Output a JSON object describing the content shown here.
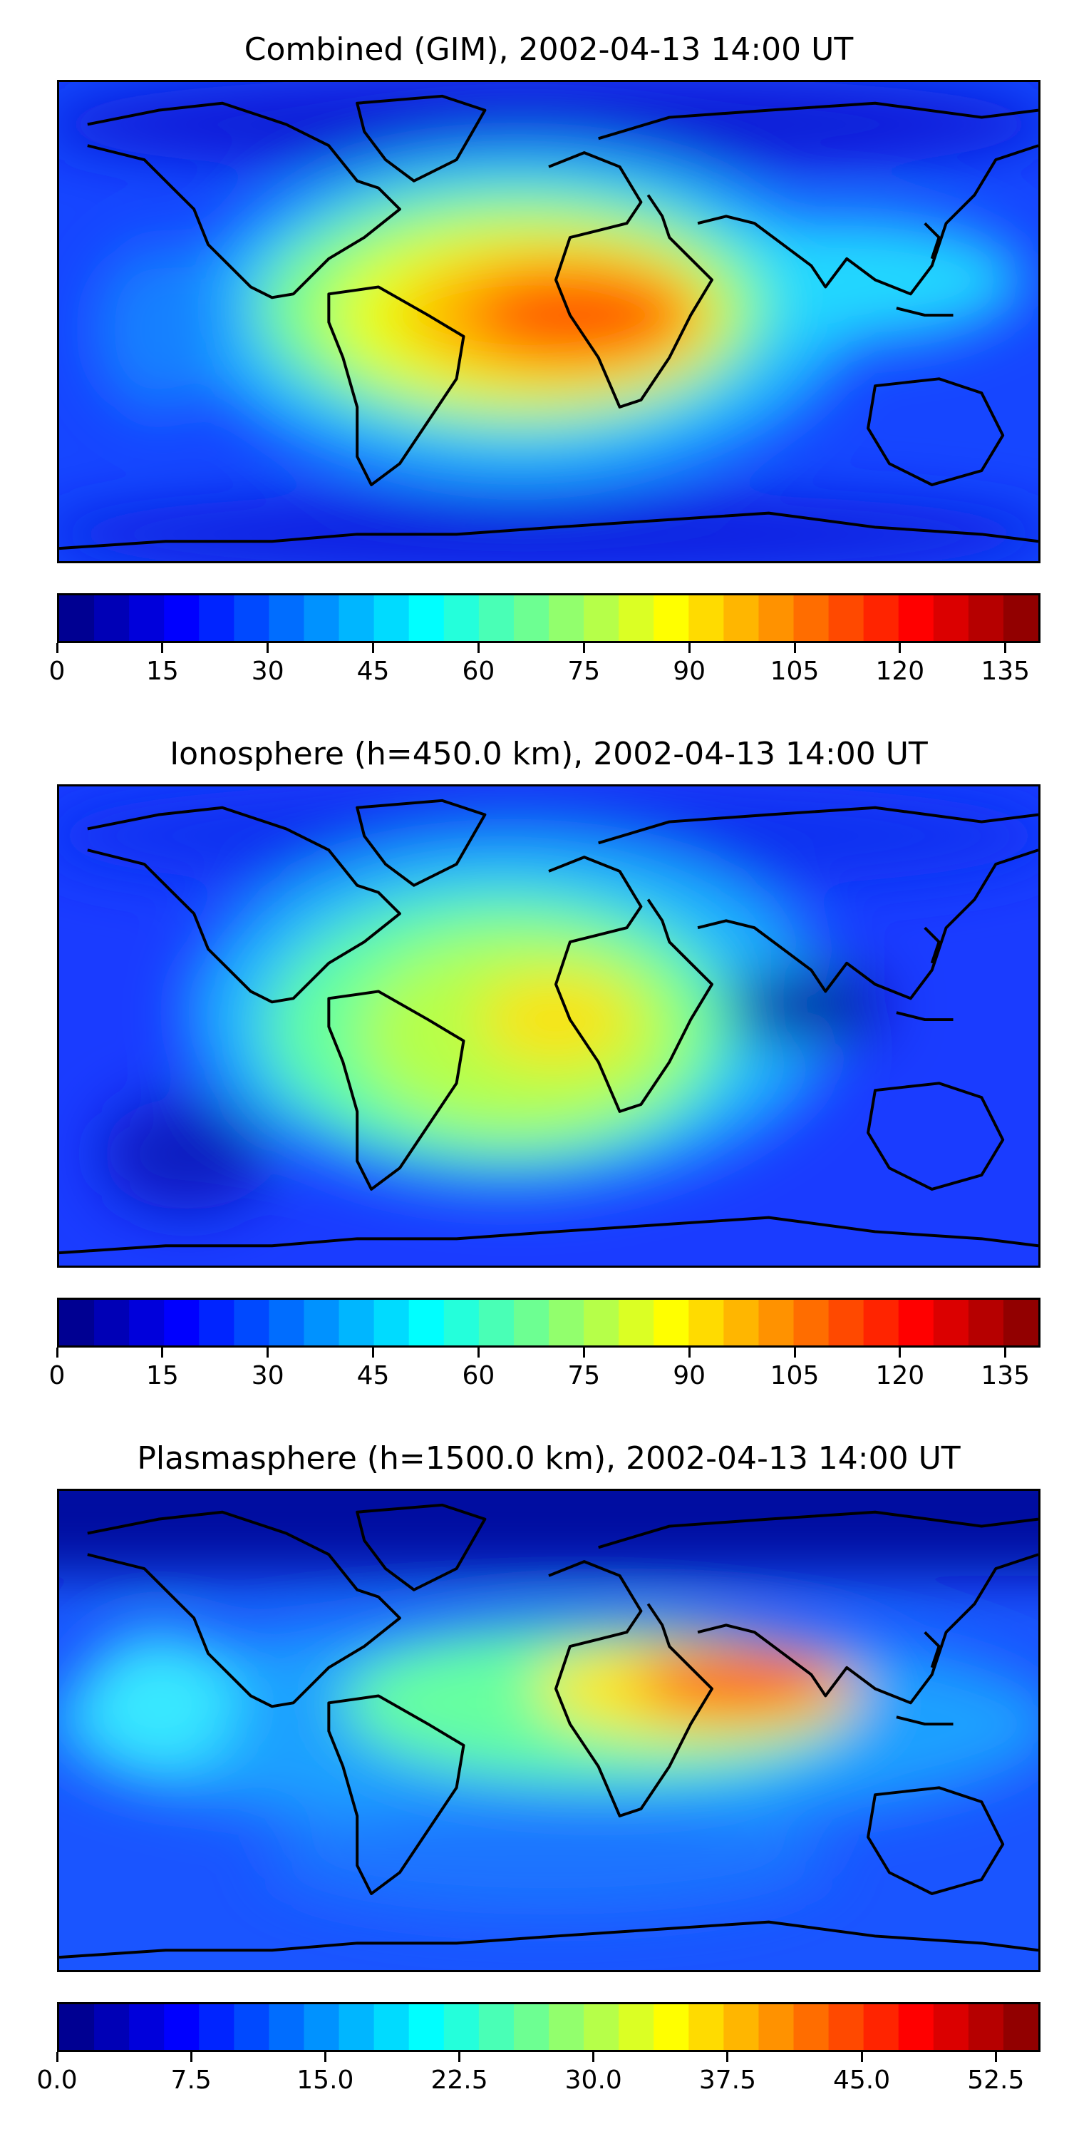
{
  "figure": {
    "panels": [
      {
        "title": "Combined (GIM), 2002-04-13 14:00 UT",
        "colorbar_max": 140,
        "colorbar_ticks": [
          "0",
          "15",
          "30",
          "45",
          "60",
          "75",
          "90",
          "105",
          "120",
          "135"
        ],
        "tick_values": [
          0,
          15,
          30,
          45,
          60,
          75,
          90,
          105,
          120,
          135
        ]
      },
      {
        "title": "Ionosphere  (h=450.0 km), 2002-04-13 14:00 UT",
        "colorbar_max": 140,
        "colorbar_ticks": [
          "0",
          "15",
          "30",
          "45",
          "60",
          "75",
          "90",
          "105",
          "120",
          "135"
        ],
        "tick_values": [
          0,
          15,
          30,
          45,
          60,
          75,
          90,
          105,
          120,
          135
        ]
      },
      {
        "title": "Plasmasphere (h=1500.0 km), 2002-04-13 14:00 UT",
        "colorbar_max": 55,
        "colorbar_ticks": [
          "0.0",
          "7.5",
          "15.0",
          "22.5",
          "30.0",
          "37.5",
          "45.0",
          "52.5"
        ],
        "tick_values": [
          0,
          7.5,
          15,
          22.5,
          30,
          37.5,
          45,
          52.5
        ]
      }
    ],
    "colormap": "jet",
    "colorbar_levels": 28
  },
  "chart_data": [
    {
      "type": "heatmap",
      "title": "Combined (GIM), 2002-04-13 14:00 UT",
      "colorbar_range": [
        0,
        140
      ],
      "colorbar_ticks": [
        0,
        15,
        30,
        45,
        60,
        75,
        90,
        105,
        120,
        135
      ],
      "max_region": "equatorial Africa / South Atlantic",
      "approx_peak": 110
    },
    {
      "type": "heatmap",
      "title": "Ionosphere  (h=450.0 km), 2002-04-13 14:00 UT",
      "colorbar_range": [
        0,
        140
      ],
      "colorbar_ticks": [
        0,
        15,
        30,
        45,
        60,
        75,
        90,
        105,
        120,
        135
      ],
      "max_region": "West Africa",
      "approx_peak": 85
    },
    {
      "type": "heatmap",
      "title": "Plasmasphere (h=1500.0 km), 2002-04-13 14:00 UT",
      "colorbar_range": [
        0,
        55
      ],
      "colorbar_ticks": [
        0,
        7.5,
        15,
        22.5,
        30,
        37.5,
        45,
        52.5
      ],
      "max_region": "Arabian Sea / India",
      "approx_peak": 45
    }
  ]
}
